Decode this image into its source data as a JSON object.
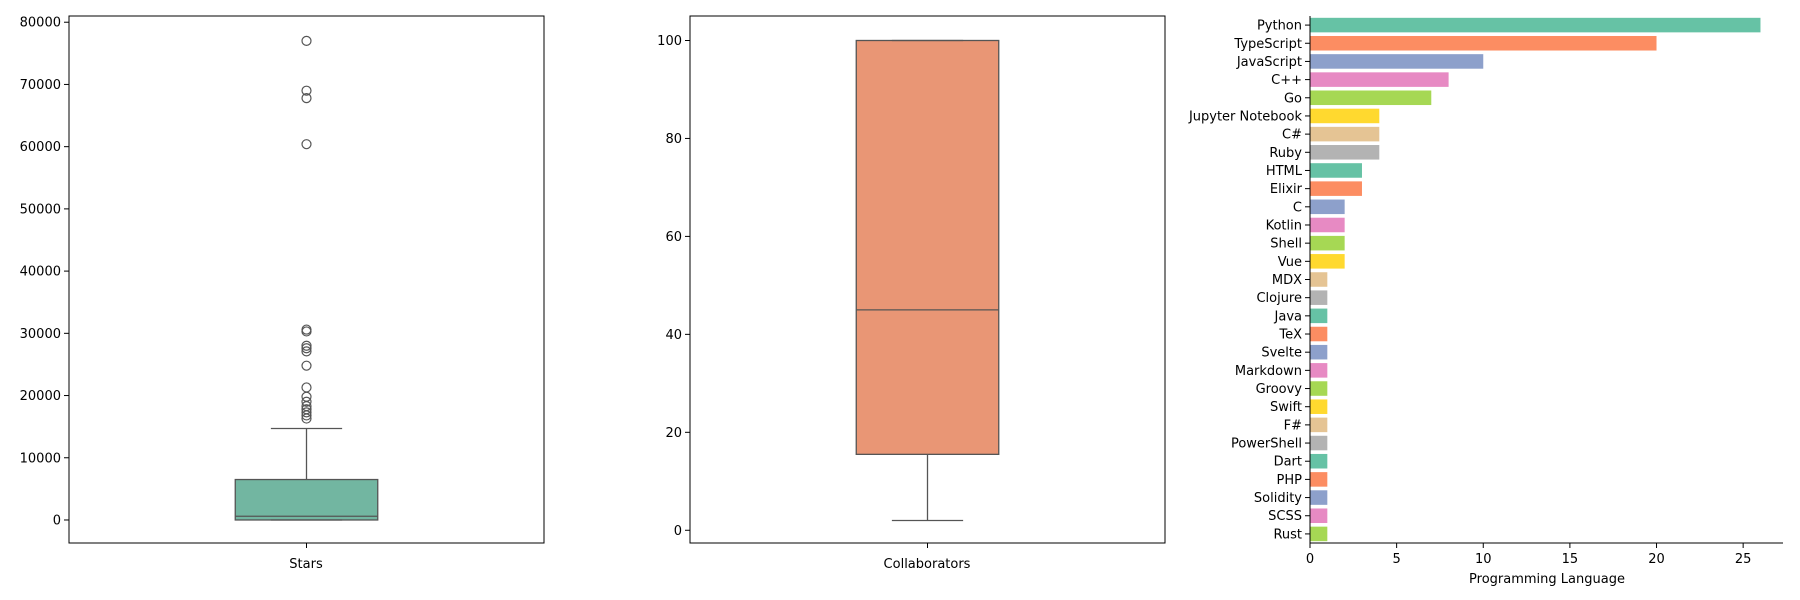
{
  "chart_data": [
    {
      "type": "box",
      "xlabel": "Stars",
      "yticks": [
        0,
        10000,
        20000,
        30000,
        40000,
        50000,
        60000,
        70000,
        80000
      ],
      "ylim": [
        -3700,
        81000
      ],
      "color": "#72b6a1",
      "box": {
        "whisker_low": 0,
        "q1": 0,
        "median": 600,
        "q3": 6500,
        "whisker_high": 14700
      },
      "outliers": [
        16300,
        16800,
        17300,
        17800,
        18300,
        19000,
        19800,
        21300,
        24800,
        27100,
        27600,
        28000,
        30300,
        30600,
        60400,
        67800,
        69000,
        77000
      ]
    },
    {
      "type": "box",
      "xlabel": "Collaborators",
      "yticks": [
        0,
        20,
        40,
        60,
        80,
        100
      ],
      "ylim": [
        -2.6,
        105
      ],
      "color": "#e99675",
      "box": {
        "whisker_low": 2,
        "q1": 15.5,
        "median": 45,
        "q3": 100,
        "whisker_high": 100
      },
      "outliers": []
    },
    {
      "type": "bar",
      "orientation": "horizontal",
      "xlabel": "Programming Language",
      "xticks": [
        0,
        5,
        10,
        15,
        20,
        25
      ],
      "xlim": [
        0,
        27.3
      ],
      "categories": [
        "Python",
        "TypeScript",
        "JavaScript",
        "C++",
        "Go",
        "Jupyter Notebook",
        "C#",
        "Ruby",
        "HTML",
        "Elixir",
        "C",
        "Kotlin",
        "Shell",
        "Vue",
        "MDX",
        "Clojure",
        "Java",
        "TeX",
        "Svelte",
        "Markdown",
        "Groovy",
        "Swift",
        "F#",
        "PowerShell",
        "Dart",
        "PHP",
        "Solidity",
        "SCSS",
        "Rust"
      ],
      "values": [
        26,
        20,
        10,
        8,
        7,
        4,
        4,
        4,
        3,
        3,
        2,
        2,
        2,
        2,
        1,
        1,
        1,
        1,
        1,
        1,
        1,
        1,
        1,
        1,
        1,
        1,
        1,
        1,
        1
      ],
      "palette": [
        "#66c2a5",
        "#fc8d62",
        "#8da0cb",
        "#e78ac3",
        "#a6d854",
        "#ffd92f",
        "#e5c494",
        "#b3b3b3"
      ]
    }
  ]
}
